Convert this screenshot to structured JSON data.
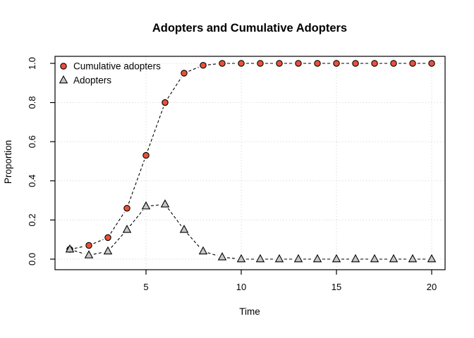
{
  "chart_data": {
    "type": "line",
    "title": "Adopters and Cumulative Adopters",
    "xlabel": "Time",
    "ylabel": "Proportion",
    "x": [
      1,
      2,
      3,
      4,
      5,
      6,
      7,
      8,
      9,
      10,
      11,
      12,
      13,
      14,
      15,
      16,
      17,
      18,
      19,
      20
    ],
    "series": [
      {
        "name": "Cumulative adopters",
        "marker": "circle",
        "fill": "#e8513a",
        "stroke": "#000000",
        "values": [
          0.05,
          0.07,
          0.11,
          0.26,
          0.53,
          0.8,
          0.95,
          0.99,
          1.0,
          1.0,
          1.0,
          1.0,
          1.0,
          1.0,
          1.0,
          1.0,
          1.0,
          1.0,
          1.0,
          1.0
        ]
      },
      {
        "name": "Adopters",
        "marker": "triangle",
        "fill": "#c6c6c6",
        "stroke": "#000000",
        "values": [
          0.05,
          0.02,
          0.04,
          0.15,
          0.27,
          0.28,
          0.15,
          0.04,
          0.01,
          0.0,
          0.0,
          0.0,
          0.0,
          0.0,
          0.0,
          0.0,
          0.0,
          0.0,
          0.0,
          0.0
        ]
      }
    ],
    "x_ticks": [
      5,
      10,
      15,
      20
    ],
    "y_ticks": [
      "0.0",
      "0.2",
      "0.4",
      "0.6",
      "0.8",
      "1.0"
    ],
    "xlim": [
      1,
      20
    ],
    "ylim": [
      0.0,
      1.0
    ],
    "grid": true,
    "grid_style": "dotted",
    "grid_color": "#d5d5d5",
    "line_style": "dashed",
    "line_color": "#000000",
    "legend_position": "top-left",
    "background": "#ffffff"
  }
}
